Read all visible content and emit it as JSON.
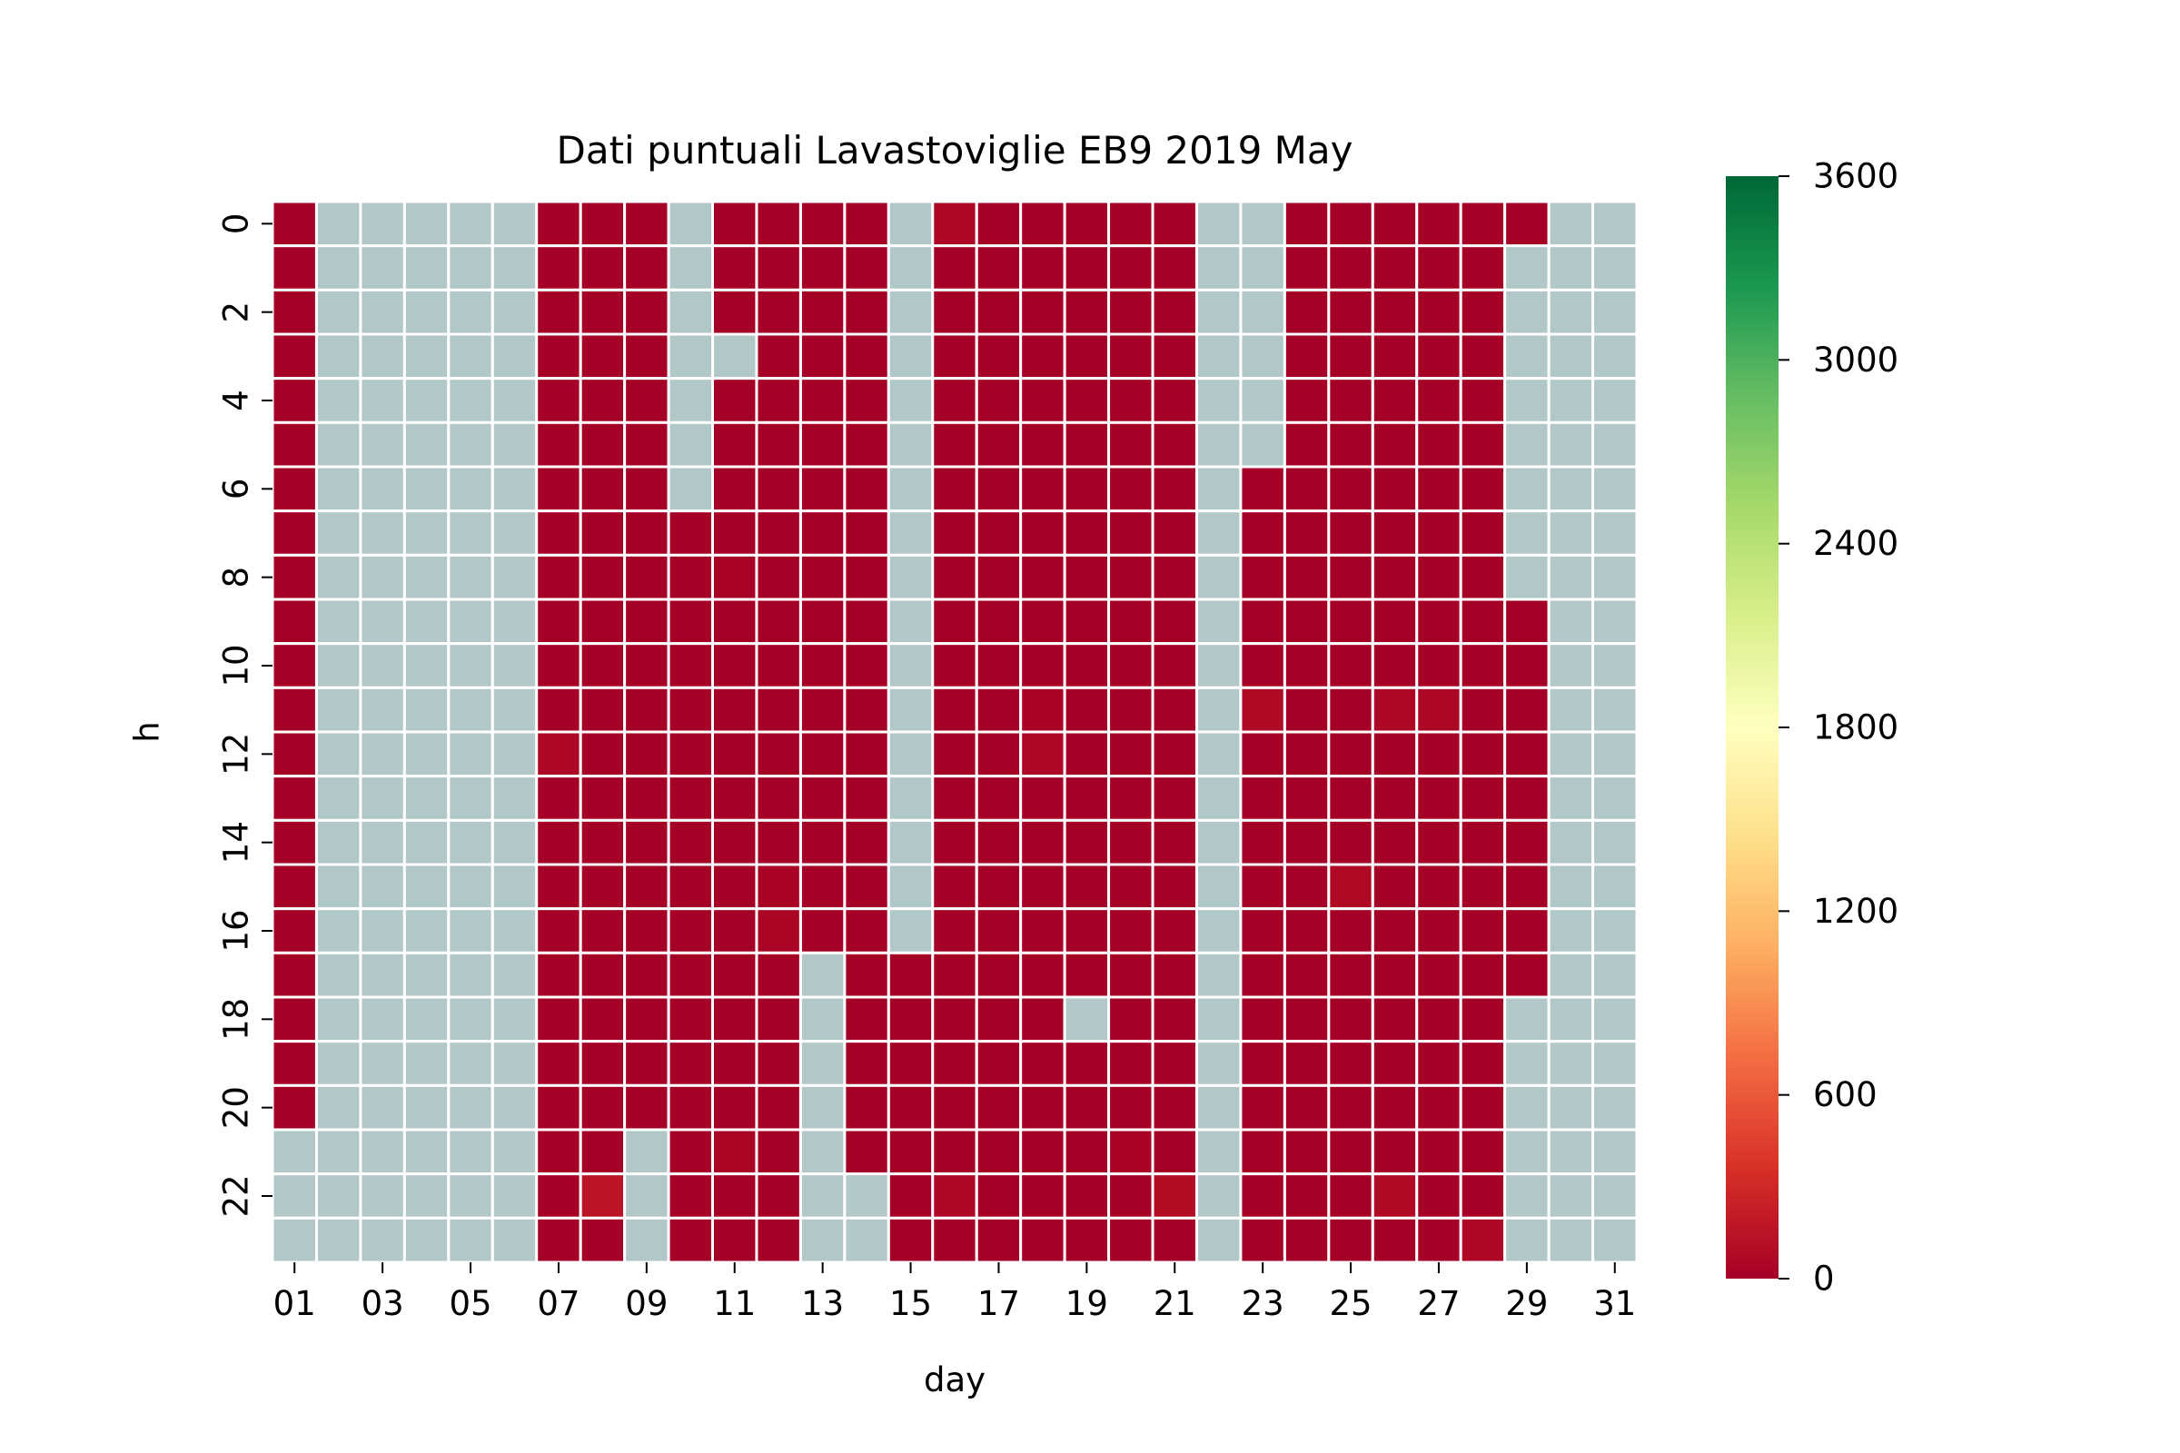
{
  "chart_data": {
    "type": "heatmap",
    "title": "Dati puntuali Lavastoviglie EB9 2019 May",
    "xlabel": "day",
    "ylabel": "h",
    "x_tick_labels": [
      "01",
      "03",
      "05",
      "07",
      "09",
      "11",
      "13",
      "15",
      "17",
      "19",
      "21",
      "23",
      "25",
      "27",
      "29",
      "31"
    ],
    "y_tick_labels": [
      "0",
      "2",
      "4",
      "6",
      "8",
      "10",
      "12",
      "14",
      "16",
      "18",
      "20",
      "22"
    ],
    "days": [
      "01",
      "02",
      "03",
      "04",
      "05",
      "06",
      "07",
      "08",
      "09",
      "10",
      "11",
      "12",
      "13",
      "14",
      "15",
      "16",
      "17",
      "18",
      "19",
      "20",
      "21",
      "22",
      "23",
      "24",
      "25",
      "26",
      "27",
      "28",
      "29",
      "30",
      "31"
    ],
    "hours": [
      0,
      1,
      2,
      3,
      4,
      5,
      6,
      7,
      8,
      9,
      10,
      11,
      12,
      13,
      14,
      15,
      16,
      17,
      18,
      19,
      20,
      21,
      22,
      23
    ],
    "missing_color": "#b2c8c8",
    "colorbar": {
      "min": 0,
      "max": 3600,
      "ticks": [
        "0",
        "600",
        "1200",
        "1800",
        "2400",
        "3000",
        "3600"
      ],
      "colormap": "RdYlGn",
      "stops": [
        "#a50026",
        "#d73027",
        "#f46d43",
        "#fdae61",
        "#fee08b",
        "#ffffbf",
        "#d9ef8b",
        "#a6d96a",
        "#66bd63",
        "#1a9850",
        "#006837"
      ]
    },
    "values": [
      [
        0,
        null,
        null,
        null,
        null,
        null,
        0,
        0,
        0,
        null,
        0,
        0,
        0,
        0,
        null,
        60,
        0,
        0,
        0,
        0,
        0,
        null,
        null,
        0,
        0,
        0,
        0,
        0,
        0,
        null,
        null
      ],
      [
        0,
        null,
        null,
        null,
        null,
        null,
        0,
        0,
        0,
        null,
        0,
        0,
        0,
        0,
        null,
        0,
        0,
        0,
        0,
        0,
        0,
        null,
        null,
        0,
        0,
        0,
        0,
        0,
        null,
        null,
        null
      ],
      [
        0,
        null,
        null,
        null,
        null,
        null,
        0,
        0,
        0,
        null,
        0,
        0,
        0,
        0,
        null,
        0,
        0,
        0,
        0,
        0,
        0,
        null,
        null,
        0,
        0,
        0,
        0,
        0,
        null,
        null,
        null
      ],
      [
        0,
        null,
        null,
        null,
        null,
        null,
        0,
        0,
        0,
        null,
        null,
        0,
        0,
        0,
        null,
        0,
        0,
        0,
        0,
        0,
        0,
        null,
        null,
        0,
        0,
        0,
        0,
        0,
        null,
        null,
        null
      ],
      [
        0,
        null,
        null,
        null,
        null,
        null,
        0,
        0,
        0,
        null,
        0,
        0,
        0,
        0,
        null,
        0,
        0,
        0,
        0,
        0,
        0,
        null,
        null,
        0,
        0,
        0,
        0,
        0,
        null,
        null,
        null
      ],
      [
        0,
        null,
        null,
        null,
        null,
        null,
        0,
        0,
        0,
        null,
        0,
        0,
        0,
        0,
        null,
        0,
        0,
        0,
        0,
        0,
        0,
        null,
        null,
        0,
        0,
        0,
        0,
        0,
        null,
        null,
        null
      ],
      [
        0,
        null,
        null,
        null,
        null,
        null,
        0,
        0,
        0,
        null,
        0,
        0,
        0,
        0,
        null,
        0,
        0,
        0,
        0,
        0,
        0,
        null,
        0,
        0,
        0,
        0,
        0,
        0,
        null,
        null,
        null
      ],
      [
        0,
        null,
        null,
        null,
        null,
        null,
        0,
        0,
        0,
        0,
        0,
        0,
        0,
        0,
        null,
        0,
        0,
        0,
        0,
        0,
        0,
        null,
        0,
        0,
        0,
        0,
        0,
        0,
        null,
        null,
        null
      ],
      [
        0,
        null,
        null,
        null,
        null,
        null,
        0,
        0,
        0,
        0,
        20,
        0,
        0,
        0,
        null,
        0,
        0,
        0,
        0,
        0,
        0,
        null,
        0,
        0,
        0,
        0,
        0,
        0,
        null,
        null,
        null
      ],
      [
        0,
        null,
        null,
        null,
        null,
        null,
        0,
        0,
        0,
        0,
        0,
        0,
        0,
        0,
        null,
        0,
        0,
        0,
        0,
        0,
        0,
        null,
        0,
        0,
        0,
        0,
        0,
        0,
        0,
        null,
        null
      ],
      [
        0,
        null,
        null,
        null,
        null,
        null,
        0,
        0,
        0,
        0,
        0,
        0,
        0,
        0,
        null,
        0,
        0,
        0,
        0,
        0,
        0,
        null,
        0,
        0,
        0,
        0,
        0,
        0,
        0,
        null,
        null
      ],
      [
        0,
        null,
        null,
        null,
        null,
        null,
        0,
        0,
        0,
        0,
        0,
        0,
        0,
        0,
        null,
        0,
        0,
        30,
        0,
        0,
        0,
        null,
        80,
        0,
        0,
        60,
        50,
        0,
        0,
        null,
        null
      ],
      [
        0,
        null,
        null,
        null,
        null,
        null,
        60,
        0,
        0,
        0,
        0,
        0,
        0,
        0,
        null,
        0,
        0,
        60,
        0,
        0,
        0,
        null,
        0,
        0,
        0,
        0,
        0,
        0,
        0,
        null,
        null
      ],
      [
        0,
        null,
        null,
        null,
        null,
        null,
        0,
        0,
        0,
        0,
        0,
        0,
        0,
        0,
        null,
        0,
        0,
        0,
        0,
        0,
        0,
        null,
        0,
        0,
        0,
        0,
        0,
        0,
        0,
        null,
        null
      ],
      [
        0,
        null,
        null,
        null,
        null,
        null,
        0,
        0,
        0,
        0,
        0,
        0,
        0,
        0,
        null,
        0,
        0,
        0,
        0,
        0,
        0,
        null,
        0,
        0,
        0,
        0,
        0,
        0,
        0,
        null,
        null
      ],
      [
        0,
        null,
        null,
        null,
        null,
        null,
        0,
        0,
        0,
        0,
        0,
        30,
        0,
        0,
        null,
        0,
        0,
        0,
        0,
        0,
        0,
        null,
        0,
        0,
        70,
        0,
        0,
        0,
        0,
        null,
        null
      ],
      [
        0,
        null,
        null,
        null,
        null,
        null,
        0,
        0,
        0,
        0,
        0,
        40,
        0,
        0,
        null,
        0,
        0,
        0,
        0,
        0,
        0,
        null,
        0,
        0,
        0,
        0,
        0,
        0,
        0,
        null,
        null
      ],
      [
        0,
        null,
        null,
        null,
        null,
        null,
        0,
        0,
        0,
        0,
        0,
        0,
        null,
        0,
        0,
        0,
        0,
        0,
        0,
        0,
        0,
        null,
        0,
        0,
        0,
        0,
        0,
        0,
        0,
        null,
        null
      ],
      [
        0,
        null,
        null,
        null,
        null,
        null,
        0,
        0,
        0,
        0,
        0,
        0,
        null,
        0,
        0,
        0,
        0,
        0,
        null,
        0,
        0,
        null,
        0,
        0,
        0,
        0,
        0,
        0,
        null,
        null,
        null
      ],
      [
        0,
        null,
        null,
        null,
        null,
        null,
        0,
        0,
        0,
        0,
        0,
        0,
        null,
        0,
        0,
        0,
        0,
        0,
        0,
        0,
        0,
        null,
        0,
        0,
        0,
        0,
        0,
        0,
        null,
        null,
        null
      ],
      [
        0,
        null,
        null,
        null,
        null,
        null,
        0,
        0,
        0,
        0,
        0,
        0,
        null,
        0,
        0,
        0,
        0,
        0,
        0,
        0,
        0,
        null,
        0,
        0,
        0,
        0,
        0,
        0,
        null,
        null,
        null
      ],
      [
        null,
        null,
        null,
        null,
        null,
        null,
        0,
        0,
        null,
        0,
        40,
        0,
        null,
        0,
        0,
        0,
        0,
        0,
        0,
        30,
        0,
        null,
        0,
        0,
        0,
        0,
        0,
        0,
        null,
        null,
        null
      ],
      [
        null,
        null,
        null,
        null,
        null,
        null,
        0,
        150,
        null,
        0,
        0,
        0,
        null,
        null,
        0,
        60,
        0,
        0,
        0,
        0,
        100,
        null,
        0,
        0,
        0,
        80,
        0,
        0,
        null,
        null,
        null
      ],
      [
        null,
        null,
        null,
        null,
        null,
        null,
        0,
        0,
        null,
        0,
        0,
        0,
        null,
        null,
        0,
        0,
        0,
        0,
        0,
        0,
        0,
        null,
        0,
        0,
        0,
        0,
        0,
        60,
        null,
        null,
        null
      ]
    ]
  }
}
